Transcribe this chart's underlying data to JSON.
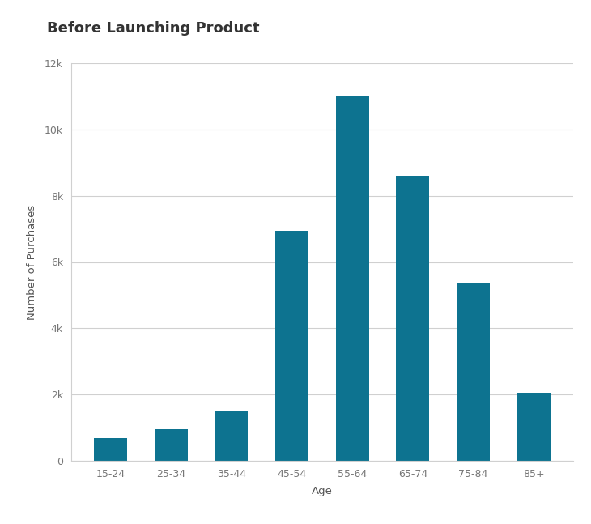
{
  "title": "Before Launching Product",
  "categories": [
    "15-24",
    "25-34",
    "35-44",
    "45-54",
    "55-64",
    "65-74",
    "75-84",
    "85+"
  ],
  "values": [
    700,
    950,
    1500,
    6950,
    11000,
    8600,
    5350,
    2050
  ],
  "bar_color": "#0d7390",
  "xlabel": "Age",
  "ylabel": "Number of Purchases",
  "ylim": [
    0,
    12000
  ],
  "yticks": [
    0,
    2000,
    4000,
    6000,
    8000,
    10000,
    12000
  ],
  "ytick_labels": [
    "0",
    "2k",
    "4k",
    "6k",
    "8k",
    "10k",
    "12k"
  ],
  "background_color": "#ffffff",
  "grid_color": "#d0d0d0",
  "title_fontsize": 13,
  "label_fontsize": 9.5,
  "tick_fontsize": 9
}
